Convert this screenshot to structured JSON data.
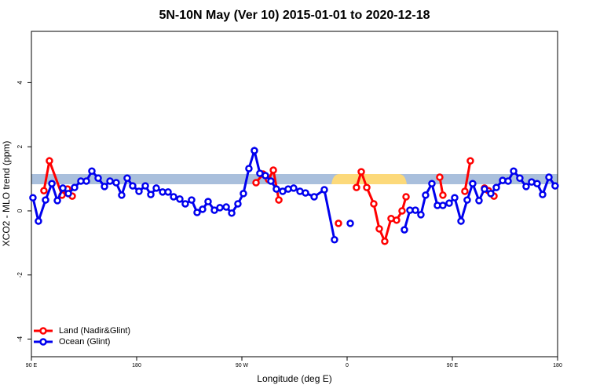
{
  "chart_data": {
    "type": "line",
    "title": "5N-10N May (Ver 10)   2015-01-01 to 2020-12-18",
    "x_label": "Longitude (deg E)",
    "y_label": "XCO2 - MLO trend (ppm)",
    "xlim": [
      90,
      540
    ],
    "ylim": [
      -4.55,
      5.6
    ],
    "xticks": [
      {
        "value": 90,
        "label": "90 E"
      },
      180,
      {
        "value": 270,
        "label": "90 W"
      },
      {
        "value": 360,
        "label": "0"
      },
      {
        "value": 450,
        "label": "90 E"
      },
      {
        "value": 540,
        "label": "180"
      }
    ],
    "yticks": [
      -4,
      -2,
      0,
      2,
      4
    ],
    "legend": "bottomleft",
    "series": [
      {
        "name": "Land (Nadir&Glint)",
        "color": "#ff0000",
        "x": [
          100.7,
          105.4,
          116.2,
          120.9,
          124.9,
          null,
          282.1,
          288.1,
          292.8,
          296.9,
          301.6,
          null,
          352.6,
          null,
          368.0,
          372.1,
          376.8,
          382.8,
          387.5,
          392.2,
          397.6,
          402.3,
          407.0,
          410.4,
          null,
          439.2,
          441.9,
          null,
          460.7,
          465.4,
          null,
          477.5,
          480.9,
          485.6
        ],
        "values": [
          0.63,
          1.56,
          0.49,
          0.68,
          0.46,
          null,
          0.88,
          1.15,
          0.98,
          1.27,
          0.34,
          null,
          -0.39,
          null,
          0.73,
          1.22,
          0.73,
          0.22,
          -0.56,
          -0.95,
          -0.24,
          -0.29,
          0.0,
          0.44,
          null,
          1.05,
          0.49,
          null,
          0.61,
          1.56,
          null,
          0.71,
          0.63,
          0.46
        ]
      },
      {
        "name": "Ocean (Glint)",
        "color": "#0000ee",
        "x": [
          91.3,
          96.0,
          102.1,
          107.5,
          112.2,
          116.9,
          121.6,
          126.9,
          132.3,
          137.0,
          141.7,
          147.1,
          152.5,
          157.2,
          162.5,
          167.2,
          171.9,
          176.6,
          182.0,
          187.4,
          192.1,
          196.8,
          202.2,
          206.9,
          211.6,
          216.9,
          221.6,
          227.0,
          231.7,
          236.4,
          241.1,
          246.5,
          251.2,
          256.6,
          261.3,
          266.6,
          271.3,
          276.0,
          280.7,
          285.4,
          290.1,
          294.8,
          299.5,
          304.9,
          309.6,
          314.3,
          319.7,
          324.4,
          331.8,
          340.5,
          349.2,
          null,
          362.7,
          null,
          409.0,
          413.7,
          418.4,
          423.1,
          427.1,
          432.5,
          437.2,
          441.9,
          447.3,
          452.0,
          457.4,
          462.7,
          467.4,
          472.8,
          477.5,
          482.9,
          487.6,
          493.0,
          497.7,
          502.4,
          507.7,
          513.1,
          517.8,
          522.5,
          527.2,
          532.6,
          537.9
        ],
        "values": [
          0.41,
          -0.32,
          0.34,
          0.85,
          0.32,
          0.71,
          0.54,
          0.73,
          0.93,
          0.93,
          1.24,
          1.02,
          0.76,
          0.93,
          0.88,
          0.49,
          1.02,
          0.78,
          0.61,
          0.78,
          0.51,
          0.71,
          0.59,
          0.59,
          0.44,
          0.37,
          0.22,
          0.34,
          -0.05,
          0.05,
          0.29,
          0.02,
          0.1,
          0.12,
          -0.07,
          0.22,
          0.54,
          1.32,
          1.88,
          1.17,
          1.1,
          0.93,
          0.68,
          0.61,
          0.68,
          0.71,
          0.61,
          0.56,
          0.44,
          0.66,
          -0.9,
          null,
          -0.39,
          null,
          -0.59,
          0.02,
          0.02,
          -0.12,
          0.49,
          0.85,
          0.17,
          0.17,
          0.24,
          0.41,
          -0.32,
          0.34,
          0.85,
          0.32,
          0.68,
          0.54,
          0.73,
          0.95,
          0.93,
          1.24,
          1.02,
          0.76,
          0.9,
          0.85,
          0.51,
          1.05,
          0.78
        ]
      }
    ]
  }
}
